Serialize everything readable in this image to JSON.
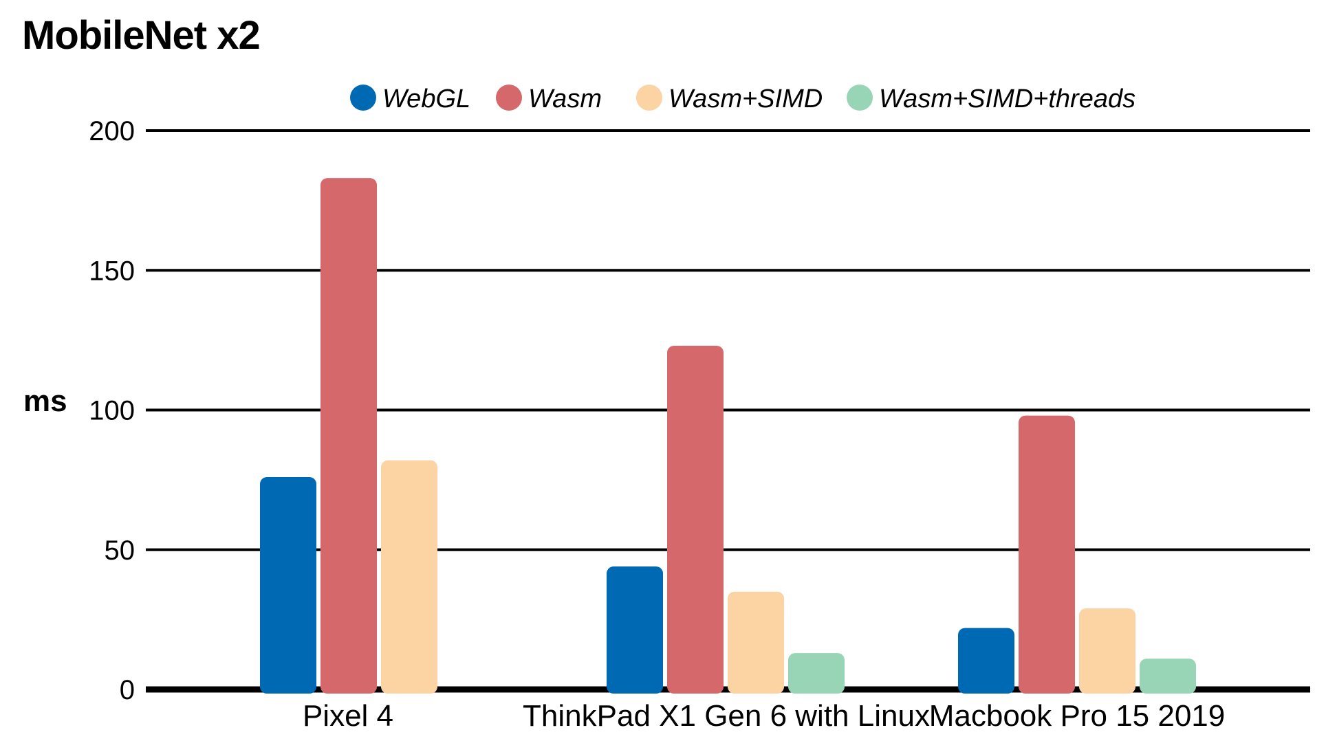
{
  "chart_data": {
    "type": "bar",
    "title": "MobileNet x2",
    "ylabel": "ms",
    "xlabel": "",
    "ylim": [
      0,
      200
    ],
    "yticks": [
      0,
      50,
      100,
      150,
      200
    ],
    "categories": [
      "Pixel 4",
      "ThinkPad X1 Gen 6 with Linux",
      "Macbook Pro 15 2019"
    ],
    "series": [
      {
        "name": "WebGL",
        "color": "#0069b4",
        "values": [
          76,
          44,
          22
        ]
      },
      {
        "name": "Wasm",
        "color": "#d5686b",
        "values": [
          183,
          123,
          98
        ]
      },
      {
        "name": "Wasm+SIMD",
        "color": "#fcd3a2",
        "values": [
          82,
          35,
          29
        ]
      },
      {
        "name": "Wasm+SIMD+threads",
        "color": "#98d4b6",
        "values": [
          null,
          13,
          11
        ]
      }
    ],
    "legend_position": "top-center",
    "grid": true
  }
}
